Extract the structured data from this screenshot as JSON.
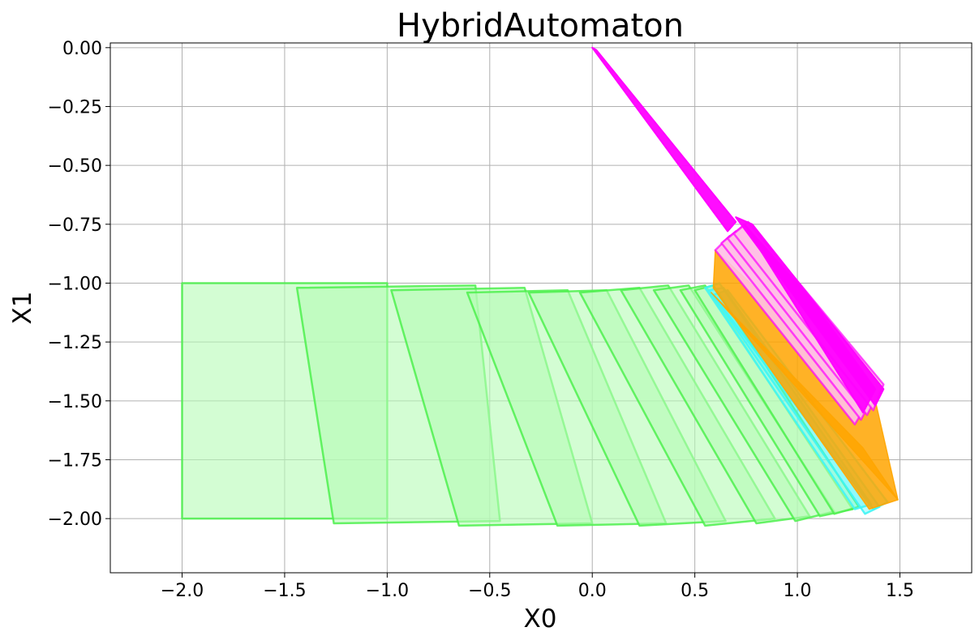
{
  "chart_data": {
    "type": "area",
    "title": "HybridAutomaton",
    "xlabel": "X0",
    "ylabel": "X1",
    "xlim": [
      -2.35,
      1.85
    ],
    "ylim": [
      -2.23,
      0.02
    ],
    "grid": true,
    "x_ticks": [
      -2.0,
      -1.5,
      -1.0,
      -0.5,
      0.0,
      0.5,
      1.0,
      1.5
    ],
    "x_tick_labels": [
      "−2.0",
      "−1.5",
      "−1.0",
      "−0.5",
      "0.0",
      "0.5",
      "1.0",
      "1.5"
    ],
    "y_ticks": [
      0.0,
      -0.25,
      -0.5,
      -0.75,
      -1.0,
      -1.25,
      -1.5,
      -1.75,
      -2.0
    ],
    "y_tick_labels": [
      "0.00",
      "−0.25",
      "−0.50",
      "−0.75",
      "−1.00",
      "−1.25",
      "−1.50",
      "−1.75",
      "−2.00"
    ],
    "colors": {
      "green_fill": "#b6fbb6",
      "green_edge": "#4df04d",
      "cyan": "#40f5f5",
      "orange": "#ffa500",
      "pink_fill": "#ffc0e6",
      "magenta": "#ff00ff"
    },
    "series": [
      {
        "mode": "green",
        "polygons": [
          [
            [
              -2.0,
              -1.0
            ],
            [
              -1.0,
              -1.0
            ],
            [
              -1.0,
              -2.0
            ],
            [
              -2.0,
              -2.0
            ]
          ],
          [
            [
              -1.44,
              -1.02
            ],
            [
              -0.57,
              -1.01
            ],
            [
              -0.45,
              -2.01
            ],
            [
              -1.26,
              -2.02
            ]
          ],
          [
            [
              -0.98,
              -1.03
            ],
            [
              -0.33,
              -1.02
            ],
            [
              -0.0,
              -2.02
            ],
            [
              -0.65,
              -2.03
            ]
          ],
          [
            [
              -0.61,
              -1.04
            ],
            [
              -0.12,
              -1.03
            ],
            [
              0.36,
              -2.02
            ],
            [
              -0.17,
              -2.03
            ]
          ],
          [
            [
              -0.31,
              -1.04
            ],
            [
              0.07,
              -1.03
            ],
            [
              0.65,
              -2.01
            ],
            [
              0.23,
              -2.03
            ]
          ],
          [
            [
              -0.06,
              -1.04
            ],
            [
              0.23,
              -1.02
            ],
            [
              0.89,
              -2.0
            ],
            [
              0.55,
              -2.03
            ]
          ],
          [
            [
              0.14,
              -1.03
            ],
            [
              0.37,
              -1.01
            ],
            [
              1.06,
              -1.99
            ],
            [
              0.8,
              -2.02
            ]
          ],
          [
            [
              0.3,
              -1.03
            ],
            [
              0.47,
              -1.01
            ],
            [
              1.18,
              -1.97
            ],
            [
              0.99,
              -2.01
            ]
          ],
          [
            [
              0.43,
              -1.03
            ],
            [
              0.55,
              -1.01
            ],
            [
              1.27,
              -1.96
            ],
            [
              1.11,
              -1.99
            ]
          ],
          [
            [
              0.5,
              -1.03
            ],
            [
              0.59,
              -1.01
            ],
            [
              1.3,
              -1.95
            ],
            [
              1.18,
              -1.98
            ]
          ]
        ]
      },
      {
        "mode": "cyan",
        "polygons": [
          [
            [
              0.55,
              -1.02
            ],
            [
              0.62,
              -1.0
            ],
            [
              1.36,
              -1.94
            ],
            [
              1.28,
              -1.96
            ]
          ],
          [
            [
              0.57,
              -1.03
            ],
            [
              0.64,
              -1.02
            ],
            [
              1.4,
              -1.95
            ],
            [
              1.33,
              -1.98
            ]
          ],
          [
            [
              0.59,
              -1.05
            ],
            [
              0.66,
              -1.03
            ],
            [
              1.44,
              -1.93
            ],
            [
              1.37,
              -1.96
            ]
          ]
        ]
      },
      {
        "mode": "orange",
        "polygons": [
          [
            [
              0.59,
              -1.02
            ],
            [
              0.6,
              -0.86
            ],
            [
              1.38,
              -1.5
            ],
            [
              1.49,
              -1.92
            ],
            [
              1.35,
              -1.96
            ]
          ],
          [
            [
              0.58,
              -1.04
            ],
            [
              1.32,
              -1.7
            ],
            [
              1.46,
              -1.88
            ],
            [
              1.49,
              -1.92
            ]
          ]
        ]
      },
      {
        "mode": "pink",
        "polygons": [
          [
            [
              0.6,
              -0.86
            ],
            [
              0.67,
              -0.8
            ],
            [
              1.37,
              -1.47
            ],
            [
              1.28,
              -1.6
            ]
          ],
          [
            [
              0.63,
              -0.83
            ],
            [
              0.7,
              -0.78
            ],
            [
              1.39,
              -1.45
            ],
            [
              1.31,
              -1.58
            ]
          ],
          [
            [
              0.66,
              -0.81
            ],
            [
              0.73,
              -0.76
            ],
            [
              1.41,
              -1.44
            ],
            [
              1.34,
              -1.56
            ]
          ],
          [
            [
              0.69,
              -0.79
            ],
            [
              0.76,
              -0.74
            ],
            [
              1.42,
              -1.43
            ],
            [
              1.37,
              -1.54
            ]
          ]
        ]
      },
      {
        "mode": "magenta",
        "polygons": [
          [
            [
              0.0,
              0.0
            ],
            [
              0.02,
              -0.01
            ],
            [
              0.7,
              -0.74
            ],
            [
              0.66,
              -0.78
            ]
          ],
          [
            [
              0.7,
              -0.72
            ],
            [
              0.78,
              -0.75
            ],
            [
              1.42,
              -1.45
            ],
            [
              1.38,
              -1.52
            ]
          ],
          [
            [
              0.74,
              -0.75
            ],
            [
              1.05,
              -1.05
            ],
            [
              1.38,
              -1.45
            ],
            [
              1.32,
              -1.55
            ]
          ]
        ]
      }
    ]
  }
}
